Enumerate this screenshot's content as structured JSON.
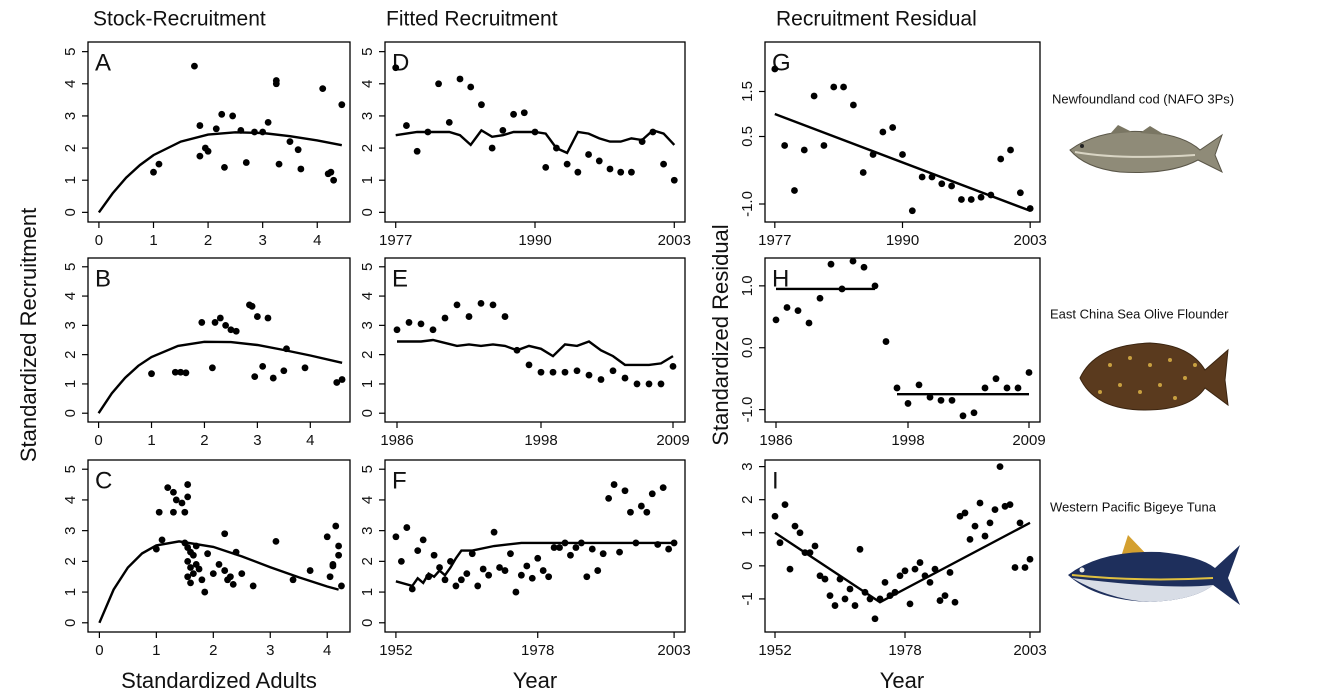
{
  "figure": {
    "column_titles": [
      "Stock-Recruitment",
      "Fitted Recruitment",
      "Recruitment Residual"
    ],
    "y_labels": [
      "Standardized Recruitment",
      "Standardized Residual"
    ],
    "x_labels": [
      "Standardized Adults",
      "Year",
      "Year"
    ],
    "species": [
      "Newfoundland cod (NAFO 3Ps)",
      "East China Sea Olive Flounder",
      "Western Pacific Bigeye Tuna"
    ]
  },
  "chart_data": [
    {
      "type": "scatter",
      "label": "A",
      "color": "#000000",
      "x": [
        1.0,
        1.1,
        1.75,
        1.85,
        1.85,
        1.95,
        2.0,
        2.15,
        2.25,
        2.3,
        2.45,
        2.6,
        2.7,
        2.85,
        3.0,
        3.1,
        3.25,
        3.25,
        3.3,
        3.5,
        3.65,
        3.7,
        4.1,
        4.2,
        4.25,
        4.3,
        4.45
      ],
      "y": [
        1.25,
        1.5,
        4.55,
        2.7,
        1.75,
        2.0,
        1.9,
        2.6,
        3.05,
        1.4,
        3.0,
        2.55,
        1.55,
        2.5,
        2.5,
        2.8,
        4.1,
        4.0,
        1.5,
        2.2,
        1.95,
        1.35,
        3.85,
        1.2,
        1.25,
        1.0,
        3.35
      ],
      "line": {
        "x": [
          0,
          0.25,
          0.5,
          0.75,
          1,
          1.5,
          2,
          2.5,
          3,
          3.5,
          4,
          4.45
        ],
        "y": [
          0,
          0.59,
          1.08,
          1.47,
          1.78,
          2.2,
          2.42,
          2.49,
          2.47,
          2.37,
          2.24,
          2.09
        ]
      },
      "xlim": [
        -0.2,
        4.6
      ],
      "ylim": [
        -0.3,
        5.3
      ],
      "xticks": [
        0,
        1,
        2,
        3,
        4
      ],
      "yticks": [
        0,
        1,
        2,
        3,
        4,
        5
      ]
    },
    {
      "type": "scatter",
      "label": "B",
      "color": "#000000",
      "x": [
        1.0,
        1.45,
        1.55,
        1.65,
        1.95,
        2.15,
        2.2,
        2.3,
        2.4,
        2.5,
        2.6,
        2.85,
        2.9,
        2.95,
        3.0,
        3.1,
        3.2,
        3.3,
        3.5,
        3.55,
        3.9,
        4.5,
        4.6
      ],
      "y": [
        1.35,
        1.4,
        1.4,
        1.38,
        3.1,
        1.55,
        3.1,
        3.25,
        3.0,
        2.85,
        2.8,
        3.7,
        3.65,
        1.25,
        3.3,
        1.6,
        3.25,
        1.2,
        1.45,
        2.2,
        1.55,
        1.05,
        1.15
      ],
      "line": {
        "x": [
          0,
          0.25,
          0.5,
          0.75,
          1,
          1.5,
          2,
          2.5,
          3,
          3.5,
          4,
          4.6
        ],
        "y": [
          0,
          0.68,
          1.21,
          1.62,
          1.92,
          2.3,
          2.44,
          2.43,
          2.33,
          2.16,
          1.97,
          1.72
        ]
      },
      "xlim": [
        -0.2,
        4.75
      ],
      "ylim": [
        -0.3,
        5.3
      ],
      "xticks": [
        0,
        1,
        2,
        3,
        4
      ],
      "yticks": [
        0,
        1,
        2,
        3,
        4,
        5
      ]
    },
    {
      "type": "scatter",
      "label": "C",
      "color": "#000000",
      "x": [
        1.0,
        1.05,
        1.1,
        1.2,
        1.3,
        1.3,
        1.35,
        1.45,
        1.5,
        1.55,
        1.55,
        1.5,
        1.55,
        1.6,
        1.55,
        1.6,
        1.55,
        1.6,
        1.65,
        1.65,
        1.7,
        1.7,
        1.75,
        1.8,
        1.85,
        1.9,
        2.0,
        2.1,
        2.2,
        2.2,
        2.25,
        2.3,
        2.35,
        2.4,
        2.5,
        2.7,
        3.1,
        3.4,
        3.7,
        4.0,
        4.05,
        4.1,
        4.15,
        4.2,
        4.2,
        4.25,
        4.1
      ],
      "y": [
        2.4,
        3.6,
        2.7,
        4.4,
        4.25,
        3.6,
        4.0,
        3.9,
        3.6,
        4.5,
        4.1,
        2.6,
        2.45,
        2.3,
        2.0,
        1.8,
        1.5,
        1.3,
        2.2,
        1.6,
        2.5,
        1.9,
        1.75,
        1.4,
        1.0,
        2.25,
        1.6,
        1.9,
        2.9,
        1.7,
        1.4,
        1.5,
        1.25,
        2.3,
        1.6,
        1.2,
        2.65,
        1.4,
        1.7,
        2.8,
        1.5,
        1.85,
        3.15,
        2.5,
        2.2,
        1.2,
        1.9
      ],
      "line": {
        "x": [
          0,
          0.25,
          0.5,
          0.75,
          1,
          1.4,
          2,
          2.5,
          3,
          3.5,
          4,
          4.2
        ],
        "y": [
          0,
          1.08,
          1.8,
          2.26,
          2.52,
          2.65,
          2.47,
          2.16,
          1.81,
          1.48,
          1.18,
          1.08
        ]
      },
      "xlim": [
        -0.2,
        4.4
      ],
      "ylim": [
        -0.3,
        5.3
      ],
      "xticks": [
        0,
        1,
        2,
        3,
        4
      ],
      "yticks": [
        0,
        1,
        2,
        3,
        4,
        5
      ]
    },
    {
      "type": "scatter",
      "label": "D",
      "color": "#000000",
      "x": [
        1977,
        1978,
        1979,
        1980,
        1981,
        1982,
        1983,
        1984,
        1985,
        1986,
        1987,
        1988,
        1989,
        1990,
        1991,
        1992,
        1993,
        1994,
        1995,
        1996,
        1997,
        1998,
        1999,
        2000,
        2001,
        2002,
        2003
      ],
      "y": [
        4.5,
        2.7,
        1.9,
        2.5,
        4.0,
        2.8,
        4.15,
        3.9,
        3.35,
        2.0,
        2.55,
        3.05,
        3.1,
        2.5,
        1.4,
        2.0,
        1.5,
        1.25,
        1.8,
        1.6,
        1.35,
        1.25,
        1.25,
        2.2,
        2.5,
        1.5,
        1.0
      ],
      "line": {
        "x": [
          1977,
          1978,
          1979,
          1980,
          1981,
          1982,
          1983,
          1984,
          1985,
          1986,
          1987,
          1988,
          1989,
          1990,
          1991,
          1992,
          1993,
          1994,
          1995,
          1996,
          1997,
          1998,
          1999,
          2000,
          2001,
          2002,
          2003
        ],
        "y": [
          2.4,
          2.45,
          2.5,
          2.5,
          2.5,
          2.5,
          2.4,
          2.1,
          2.55,
          2.35,
          2.4,
          2.5,
          2.5,
          2.5,
          2.45,
          2.0,
          1.85,
          2.5,
          2.45,
          2.3,
          2.2,
          2.2,
          2.3,
          2.25,
          2.55,
          2.45,
          2.1
        ]
      },
      "xlim": [
        1976,
        2004
      ],
      "ylim": [
        -0.3,
        5.3
      ],
      "xticks": [
        1977,
        1990,
        2003
      ],
      "yticks": [
        0,
        1,
        2,
        3,
        4,
        5
      ]
    },
    {
      "type": "scatter",
      "label": "E",
      "color": "#000000",
      "x": [
        1986,
        1987,
        1988,
        1989,
        1990,
        1991,
        1992,
        1993,
        1994,
        1995,
        1996,
        1997,
        1998,
        1999,
        2000,
        2001,
        2002,
        2003,
        2004,
        2005,
        2006,
        2007,
        2008,
        2009
      ],
      "y": [
        2.85,
        3.1,
        3.05,
        2.85,
        3.25,
        3.7,
        3.3,
        3.75,
        3.7,
        3.3,
        2.15,
        1.65,
        1.4,
        1.4,
        1.4,
        1.45,
        1.3,
        1.15,
        1.45,
        1.2,
        1.0,
        1.0,
        1.0,
        1.6
      ],
      "line": {
        "x": [
          1986,
          1987,
          1988,
          1989,
          1990,
          1991,
          1992,
          1993,
          1994,
          1995,
          1996,
          1997,
          1998,
          1999,
          2000,
          2001,
          2002,
          2003,
          2004,
          2005,
          2006,
          2007,
          2008,
          2009
        ],
        "y": [
          2.45,
          2.45,
          2.45,
          2.5,
          2.4,
          2.3,
          2.35,
          2.3,
          2.35,
          2.3,
          2.15,
          2.3,
          2.2,
          1.95,
          2.35,
          2.3,
          2.45,
          2.15,
          1.95,
          1.65,
          1.65,
          1.65,
          1.7,
          1.95
        ]
      },
      "xlim": [
        1985,
        2010
      ],
      "ylim": [
        -0.3,
        5.3
      ],
      "xticks": [
        1986,
        1998,
        2009
      ],
      "yticks": [
        0,
        1,
        2,
        3,
        4,
        5
      ]
    },
    {
      "type": "scatter",
      "label": "F",
      "color": "#000000",
      "x": [
        1952,
        1953,
        1954,
        1955,
        1956,
        1957,
        1958,
        1959,
        1960,
        1961,
        1962,
        1963,
        1964,
        1965,
        1966,
        1967,
        1968,
        1969,
        1970,
        1971,
        1972,
        1973,
        1974,
        1975,
        1976,
        1977,
        1978,
        1979,
        1980,
        1981,
        1982,
        1983,
        1984,
        1985,
        1986,
        1987,
        1988,
        1989,
        1990,
        1991,
        1992,
        1993,
        1994,
        1995,
        1996,
        1997,
        1998,
        1999,
        2000,
        2001,
        2002,
        2003
      ],
      "y": [
        2.8,
        2.0,
        3.1,
        1.1,
        2.35,
        2.7,
        1.5,
        2.2,
        1.8,
        1.4,
        2.0,
        1.2,
        1.4,
        1.6,
        2.25,
        1.2,
        1.75,
        1.55,
        2.95,
        1.8,
        1.7,
        2.25,
        1.0,
        1.55,
        1.85,
        1.45,
        2.1,
        1.7,
        1.5,
        2.45,
        2.45,
        2.6,
        2.2,
        2.45,
        2.6,
        1.5,
        2.4,
        1.7,
        2.25,
        4.05,
        4.5,
        2.3,
        4.3,
        3.6,
        2.6,
        3.8,
        3.6,
        4.2,
        2.55,
        4.4,
        2.4,
        2.6
      ],
      "line": {
        "x": [
          1952,
          1955,
          1956,
          1957,
          1958,
          1959,
          1960,
          1961,
          1962,
          1963,
          1964,
          1966,
          1970,
          1975,
          1980,
          1990,
          2000,
          2003
        ],
        "y": [
          1.35,
          1.2,
          1.45,
          1.3,
          1.6,
          1.5,
          1.7,
          1.55,
          1.8,
          2.1,
          2.35,
          2.35,
          2.5,
          2.6,
          2.6,
          2.6,
          2.6,
          2.6
        ]
      },
      "xlim": [
        1950,
        2005
      ],
      "ylim": [
        -0.3,
        5.3
      ],
      "xticks": [
        1952,
        1978,
        2003
      ],
      "yticks": [
        0,
        1,
        2,
        3,
        4,
        5
      ]
    },
    {
      "type": "scatter",
      "label": "G",
      "color": "#000000",
      "x": [
        1977,
        1978,
        1979,
        1980,
        1981,
        1982,
        1983,
        1984,
        1985,
        1986,
        1987,
        1988,
        1989,
        1990,
        1991,
        1992,
        1993,
        1994,
        1995,
        1996,
        1997,
        1998,
        1999,
        2000,
        2001,
        2002,
        2003
      ],
      "y": [
        2.0,
        0.3,
        -0.7,
        0.2,
        1.4,
        0.3,
        1.6,
        1.6,
        1.2,
        -0.3,
        0.1,
        0.6,
        0.7,
        0.1,
        -1.15,
        -0.4,
        -0.4,
        -0.55,
        -0.6,
        -0.9,
        -0.9,
        -0.85,
        -0.8,
        0.0,
        0.2,
        -0.75,
        -1.1
      ],
      "line": {
        "x": [
          1977,
          2003
        ],
        "y": [
          1.0,
          -1.15
        ]
      },
      "xlim": [
        1976,
        2004
      ],
      "ylim": [
        -1.4,
        2.6
      ],
      "xticks": [
        1977,
        1990,
        2003
      ],
      "yticks": [
        {
          "value": -1,
          "label": "-1.0"
        },
        0.5,
        1.5
      ]
    },
    {
      "type": "scatter",
      "label": "H",
      "color": "#000000",
      "x": [
        1986,
        1987,
        1988,
        1989,
        1990,
        1991,
        1992,
        1993,
        1994,
        1995,
        1996,
        1997,
        1998,
        1999,
        2000,
        2001,
        2002,
        2003,
        2004,
        2005,
        2006,
        2007,
        2008,
        2009
      ],
      "y": [
        0.45,
        0.65,
        0.6,
        0.4,
        0.8,
        1.35,
        0.95,
        1.4,
        1.3,
        1.0,
        0.1,
        -0.65,
        -0.9,
        -0.6,
        -0.8,
        -0.85,
        -0.85,
        -1.1,
        -1.05,
        -0.65,
        -0.5,
        -0.65,
        -0.65,
        -0.4
      ],
      "line": {
        "x": [
          1986,
          1995,
          1996,
          1997,
          2009
        ],
        "y": [
          0.95,
          0.95,
          null,
          -0.75,
          -0.75
        ]
      },
      "xlim": [
        1985,
        2010
      ],
      "ylim": [
        -1.2,
        1.45
      ],
      "xticks": [
        1986,
        1998,
        2009
      ],
      "yticks": [
        {
          "value": -1,
          "label": "-1.0"
        },
        {
          "value": 0,
          "label": "0.0"
        },
        {
          "value": 1,
          "label": "1.0"
        }
      ]
    },
    {
      "type": "scatter",
      "label": "I",
      "color": "#000000",
      "x": [
        1952,
        1953,
        1954,
        1955,
        1956,
        1957,
        1958,
        1959,
        1960,
        1961,
        1962,
        1963,
        1964,
        1965,
        1966,
        1967,
        1968,
        1969,
        1970,
        1971,
        1972,
        1973,
        1974,
        1975,
        1976,
        1977,
        1978,
        1979,
        1980,
        1981,
        1982,
        1983,
        1984,
        1985,
        1986,
        1987,
        1988,
        1989,
        1990,
        1991,
        1992,
        1993,
        1994,
        1995,
        1996,
        1997,
        1998,
        1999,
        2000,
        2001,
        2002,
        2003
      ],
      "y": [
        1.5,
        0.7,
        1.85,
        -0.1,
        1.2,
        1.0,
        0.4,
        0.4,
        0.6,
        -0.3,
        -0.4,
        -0.9,
        -1.2,
        -0.4,
        -1.0,
        -0.7,
        -1.2,
        0.5,
        -0.8,
        -1.0,
        -1.6,
        -1.0,
        -0.5,
        -0.9,
        -0.8,
        -0.3,
        -0.15,
        -1.15,
        -0.1,
        0.1,
        -0.3,
        -0.5,
        -0.1,
        -1.05,
        -0.9,
        -0.2,
        -1.1,
        1.5,
        1.6,
        0.8,
        1.2,
        1.9,
        0.9,
        1.3,
        1.7,
        3.0,
        1.8,
        1.85,
        -0.05,
        1.3,
        -0.05,
        0.2
      ],
      "line": {
        "x": [
          1952,
          1973,
          2003
        ],
        "y": [
          1.0,
          -1.1,
          1.3
        ]
      },
      "xlim": [
        1950,
        2005
      ],
      "ylim": [
        -2.0,
        3.2
      ],
      "xticks": [
        1952,
        1978,
        2003
      ],
      "yticks": [
        -1,
        0,
        1,
        2,
        3
      ]
    }
  ]
}
